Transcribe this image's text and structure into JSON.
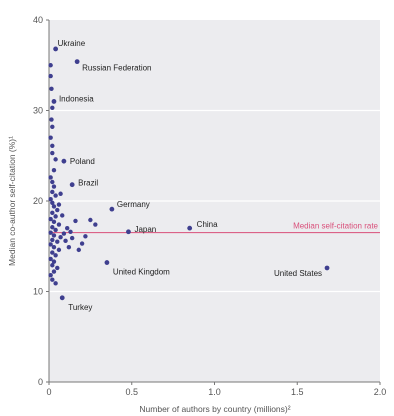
{
  "chart_data": {
    "type": "scatter",
    "title": "",
    "xlabel": "Number of authors by country (millions)²",
    "ylabel": "Median co-author self-citation (%)¹",
    "xlim": [
      0,
      2.0
    ],
    "ylim": [
      0,
      40
    ],
    "x_ticks": [
      "0",
      "0.5",
      "1.0",
      "1.5",
      "2.0"
    ],
    "y_ticks": [
      "0",
      "10",
      "20",
      "30",
      "40"
    ],
    "grid_y": [
      10,
      20,
      30
    ],
    "background_panel": "#ececef",
    "point_color": "#3f3f8f",
    "median": {
      "value": 16.5,
      "label": "Median self-citation rate",
      "color": "#d94f7a"
    },
    "labeled_points": [
      {
        "name": "Ukraine",
        "x": 0.04,
        "y": 36.8
      },
      {
        "name": "Russian Federation",
        "x": 0.17,
        "y": 35.4
      },
      {
        "name": "Indonesia",
        "x": 0.03,
        "y": 31.0
      },
      {
        "name": "Poland",
        "x": 0.09,
        "y": 24.4
      },
      {
        "name": "Brazil",
        "x": 0.14,
        "y": 21.8
      },
      {
        "name": "Germany",
        "x": 0.38,
        "y": 19.1
      },
      {
        "name": "Japan",
        "x": 0.48,
        "y": 16.6
      },
      {
        "name": "China",
        "x": 0.85,
        "y": 17.0
      },
      {
        "name": "United Kingdom",
        "x": 0.35,
        "y": 13.2
      },
      {
        "name": "United States",
        "x": 1.68,
        "y": 12.6
      },
      {
        "name": "Turkey",
        "x": 0.08,
        "y": 9.3
      }
    ],
    "points": [
      [
        0.01,
        35.0
      ],
      [
        0.01,
        33.8
      ],
      [
        0.015,
        32.4
      ],
      [
        0.02,
        30.3
      ],
      [
        0.015,
        29.0
      ],
      [
        0.02,
        28.2
      ],
      [
        0.01,
        27.0
      ],
      [
        0.02,
        26.1
      ],
      [
        0.02,
        25.3
      ],
      [
        0.04,
        24.6
      ],
      [
        0.03,
        23.4
      ],
      [
        0.01,
        22.6
      ],
      [
        0.02,
        22.1
      ],
      [
        0.03,
        21.6
      ],
      [
        0.02,
        21.0
      ],
      [
        0.04,
        20.6
      ],
      [
        0.01,
        20.2
      ],
      [
        0.02,
        19.8
      ],
      [
        0.03,
        19.4
      ],
      [
        0.05,
        19.0
      ],
      [
        0.02,
        18.7
      ],
      [
        0.04,
        18.3
      ],
      [
        0.01,
        18.0
      ],
      [
        0.03,
        17.7
      ],
      [
        0.06,
        17.4
      ],
      [
        0.02,
        17.1
      ],
      [
        0.04,
        16.8
      ],
      [
        0.01,
        16.5
      ],
      [
        0.03,
        16.2
      ],
      [
        0.07,
        16.0
      ],
      [
        0.02,
        15.7
      ],
      [
        0.05,
        15.5
      ],
      [
        0.01,
        15.2
      ],
      [
        0.03,
        14.9
      ],
      [
        0.06,
        14.6
      ],
      [
        0.02,
        14.3
      ],
      [
        0.04,
        14.0
      ],
      [
        0.01,
        13.6
      ],
      [
        0.03,
        13.3
      ],
      [
        0.02,
        12.9
      ],
      [
        0.05,
        12.6
      ],
      [
        0.03,
        12.2
      ],
      [
        0.01,
        11.8
      ],
      [
        0.02,
        11.3
      ],
      [
        0.04,
        10.9
      ],
      [
        0.09,
        16.4
      ],
      [
        0.1,
        15.6
      ],
      [
        0.12,
        14.9
      ],
      [
        0.14,
        15.9
      ],
      [
        0.16,
        17.8
      ],
      [
        0.18,
        14.6
      ],
      [
        0.2,
        15.3
      ],
      [
        0.22,
        16.1
      ],
      [
        0.25,
        17.9
      ],
      [
        0.28,
        17.4
      ],
      [
        0.08,
        18.4
      ],
      [
        0.11,
        17.0
      ],
      [
        0.06,
        19.6
      ],
      [
        0.13,
        16.6
      ],
      [
        0.07,
        20.8
      ]
    ]
  }
}
